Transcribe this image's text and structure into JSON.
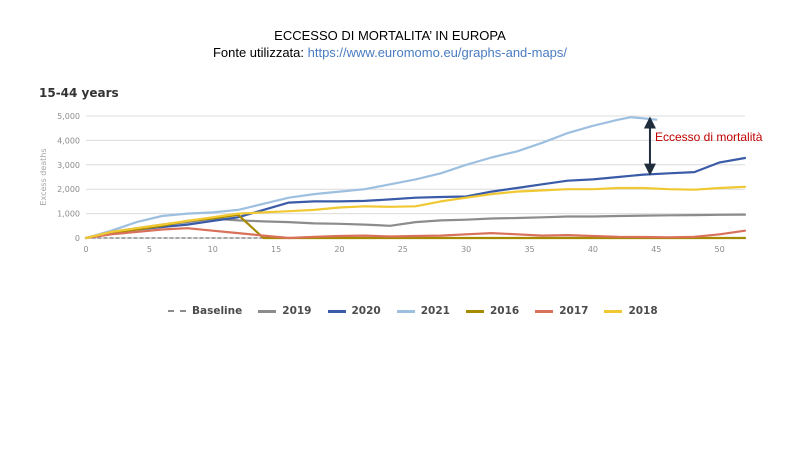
{
  "header": {
    "title": "ECCESSO DI MORTALITA’ IN EUROPA",
    "source_label": "Fonte utilizzata:",
    "source_url": "https://www.euromomo.eu/graphs-and-maps/"
  },
  "annotation": {
    "text": "Eccesso di mortalità",
    "color": "#c00000"
  },
  "chart_data": {
    "type": "line",
    "title": "15-44 years",
    "ylabel": "Excess deaths",
    "xlabel": "",
    "xlim": [
      0,
      52
    ],
    "ylim": [
      0,
      5000
    ],
    "xticks": [
      0,
      5,
      10,
      15,
      20,
      25,
      30,
      35,
      40,
      45,
      50
    ],
    "yticks": [
      0,
      1000,
      2000,
      3000,
      4000,
      5000
    ],
    "ytick_labels": [
      "0",
      "1,000",
      "2,000",
      "3,000",
      "4,000",
      "5,000"
    ],
    "grid": "horizontal",
    "legend_position": "bottom",
    "series": [
      {
        "name": "Baseline",
        "color": "#8c8c8c",
        "style": "dashed",
        "x": [
          0,
          52
        ],
        "y": [
          0,
          0
        ]
      },
      {
        "name": "2019",
        "color": "#8c8c8c",
        "style": "solid",
        "x": [
          0,
          2,
          4,
          6,
          8,
          10,
          12,
          14,
          16,
          18,
          20,
          22,
          24,
          26,
          28,
          30,
          32,
          34,
          36,
          38,
          40,
          42,
          44,
          46,
          48,
          50,
          52
        ],
        "y": [
          0,
          250,
          400,
          550,
          650,
          800,
          720,
          680,
          650,
          600,
          580,
          550,
          500,
          650,
          720,
          750,
          800,
          820,
          850,
          880,
          880,
          900,
          920,
          930,
          940,
          950,
          960
        ]
      },
      {
        "name": "2020",
        "color": "#3a5ba8",
        "style": "solid",
        "x": [
          0,
          2,
          4,
          6,
          8,
          10,
          12,
          14,
          16,
          18,
          20,
          22,
          24,
          26,
          28,
          30,
          32,
          34,
          36,
          38,
          40,
          42,
          44,
          46,
          48,
          50,
          52
        ],
        "y": [
          0,
          200,
          350,
          450,
          550,
          700,
          850,
          1150,
          1450,
          1500,
          1500,
          1520,
          1580,
          1650,
          1680,
          1700,
          1900,
          2050,
          2200,
          2350,
          2400,
          2500,
          2600,
          2650,
          2700,
          3100,
          3280
        ]
      },
      {
        "name": "2021",
        "color": "#9dbfe0",
        "style": "solid",
        "x": [
          0,
          2,
          4,
          6,
          8,
          10,
          12,
          14,
          16,
          18,
          20,
          22,
          24,
          26,
          28,
          30,
          32,
          34,
          36,
          38,
          40,
          42,
          43,
          44,
          45
        ],
        "y": [
          0,
          300,
          650,
          900,
          1000,
          1050,
          1150,
          1400,
          1650,
          1800,
          1900,
          2000,
          2200,
          2400,
          2650,
          3000,
          3300,
          3550,
          3900,
          4300,
          4600,
          4850,
          4950,
          4900,
          4850
        ]
      },
      {
        "name": "2016",
        "color": "#a68a00",
        "style": "solid",
        "x": [
          0,
          2,
          4,
          6,
          8,
          10,
          12,
          14,
          16,
          18,
          20,
          22,
          24,
          26,
          28,
          30,
          32,
          34,
          36,
          38,
          40,
          42,
          44,
          46,
          48,
          50,
          52
        ],
        "y": [
          0,
          200,
          350,
          500,
          700,
          800,
          950,
          0,
          0,
          0,
          0,
          0,
          0,
          0,
          0,
          0,
          0,
          0,
          0,
          0,
          0,
          0,
          0,
          0,
          0,
          0,
          0
        ]
      },
      {
        "name": "2017",
        "color": "#d9705a",
        "style": "solid",
        "x": [
          0,
          2,
          4,
          6,
          8,
          10,
          12,
          14,
          16,
          18,
          20,
          22,
          24,
          26,
          28,
          30,
          32,
          34,
          36,
          38,
          40,
          42,
          44,
          46,
          48,
          50,
          52
        ],
        "y": [
          0,
          150,
          250,
          350,
          400,
          300,
          200,
          100,
          0,
          50,
          80,
          100,
          60,
          80,
          100,
          150,
          200,
          150,
          100,
          120,
          80,
          50,
          40,
          30,
          50,
          150,
          300
        ]
      },
      {
        "name": "2018",
        "color": "#f0c832",
        "style": "solid",
        "x": [
          0,
          2,
          4,
          6,
          8,
          10,
          12,
          14,
          16,
          18,
          20,
          22,
          24,
          26,
          28,
          30,
          32,
          34,
          36,
          38,
          40,
          42,
          44,
          46,
          48,
          50,
          52
        ],
        "y": [
          0,
          250,
          400,
          550,
          700,
          850,
          1000,
          1050,
          1100,
          1150,
          1250,
          1300,
          1280,
          1300,
          1500,
          1650,
          1800,
          1900,
          1950,
          2000,
          2000,
          2050,
          2050,
          2000,
          1980,
          2050,
          2100
        ]
      }
    ]
  }
}
